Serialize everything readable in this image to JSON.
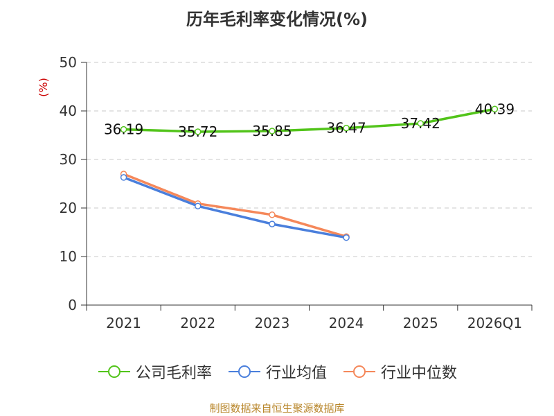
{
  "title": "历年毛利率变化情况(%)",
  "source_note": "制图数据来自恒生聚源数据库",
  "chart_data": {
    "type": "line",
    "title": "历年毛利率变化情况(%)",
    "ylabel": "(%)",
    "xlabel": "",
    "ylim": [
      0,
      50
    ],
    "yticks": [
      0,
      10,
      20,
      30,
      40,
      50
    ],
    "categories": [
      "2021",
      "2022",
      "2023",
      "2024",
      "2025",
      "2026Q1"
    ],
    "grid": true,
    "legend_position": "bottom",
    "series": [
      {
        "name": "公司毛利率",
        "color": "#52c41a",
        "values": [
          36.19,
          35.72,
          35.85,
          36.47,
          37.42,
          40.39
        ],
        "labels": [
          "36.19",
          "35.72",
          "35.85",
          "36.47",
          "37.42",
          "40.39"
        ]
      },
      {
        "name": "行业均值",
        "color": "#4a7fdc",
        "values": [
          26.3,
          20.4,
          16.7,
          13.9,
          null,
          null
        ]
      },
      {
        "name": "行业中位数",
        "color": "#f5885a",
        "values": [
          27.0,
          20.9,
          18.6,
          14.1,
          null,
          null
        ]
      }
    ]
  }
}
